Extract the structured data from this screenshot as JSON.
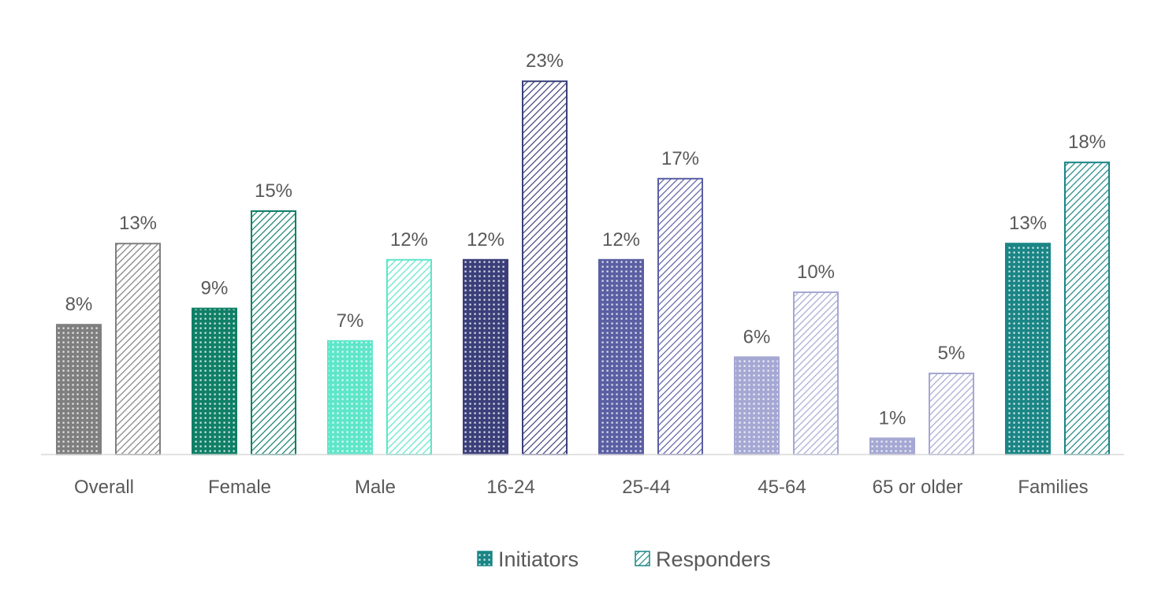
{
  "chart_data": {
    "type": "bar",
    "title": "",
    "xlabel": "",
    "ylabel": "",
    "ylim": [
      0,
      25
    ],
    "grid": false,
    "legend_position": "bottom",
    "categories": [
      "Overall",
      "Female",
      "Male",
      "16-24",
      "25-44",
      "45-64",
      "65 or older",
      "Families"
    ],
    "category_colors": [
      "#7f7f7f",
      "#0f7f66",
      "#5ee6c9",
      "#3a3f7a",
      "#5a5fa3",
      "#a5a8d3",
      "#a5a8d3",
      "#1a8585"
    ],
    "series": [
      {
        "name": "Initiators",
        "pattern": "dots",
        "values": [
          8,
          9,
          7,
          12,
          12,
          6,
          1,
          13
        ],
        "labels": [
          "8%",
          "9%",
          "7%",
          "12%",
          "12%",
          "6%",
          "1%",
          "13%"
        ]
      },
      {
        "name": "Responders",
        "pattern": "diagonal-hatch",
        "values": [
          13,
          15,
          12,
          23,
          17,
          10,
          5,
          18
        ],
        "labels": [
          "13%",
          "15%",
          "12%",
          "23%",
          "17%",
          "10%",
          "5%",
          "18%"
        ]
      }
    ],
    "legend_color": "#1a8585"
  }
}
